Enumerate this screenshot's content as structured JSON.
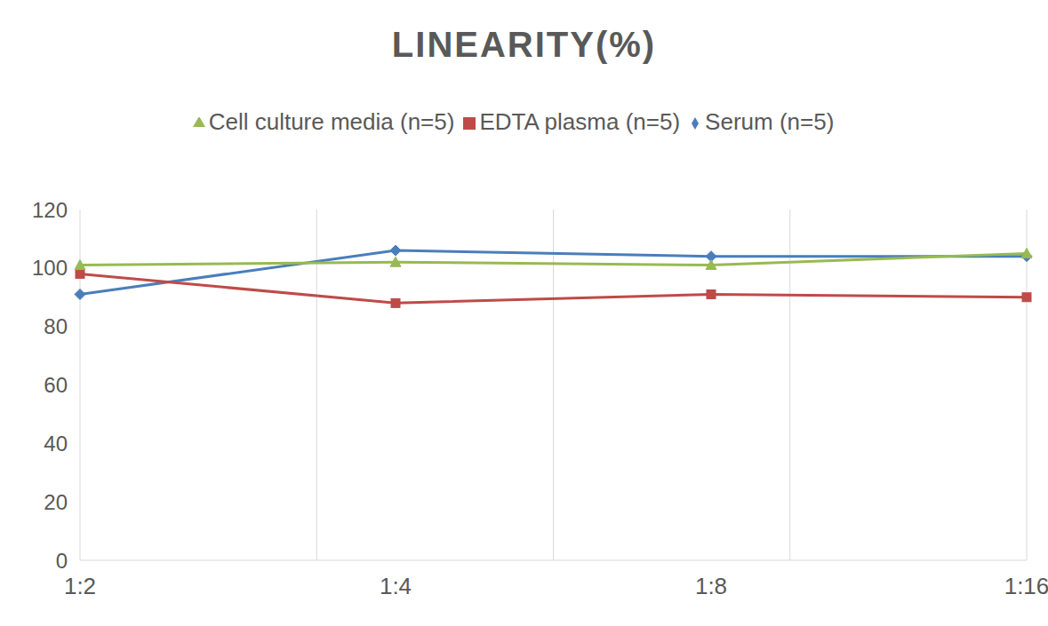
{
  "chart_data": {
    "type": "line",
    "title": "LINEARITY(%)",
    "categories": [
      "1:2",
      "1:4",
      "1:8",
      "1:16"
    ],
    "series": [
      {
        "name": "Serum (n=5)",
        "color": "#4a7ebb",
        "marker": "diamond",
        "values": [
          91,
          106,
          104,
          104
        ]
      },
      {
        "name": "EDTA plasma (n=5)",
        "color": "#be4b48",
        "marker": "square",
        "values": [
          98,
          88,
          91,
          90
        ]
      },
      {
        "name": "Cell culture media (n=5)",
        "color": "#98b954",
        "marker": "triangle",
        "values": [
          101,
          102,
          101,
          105
        ]
      }
    ],
    "ylim": [
      0,
      120
    ],
    "yticks": [
      0,
      20,
      40,
      60,
      80,
      100,
      120
    ],
    "grid": true,
    "legend": "top"
  }
}
